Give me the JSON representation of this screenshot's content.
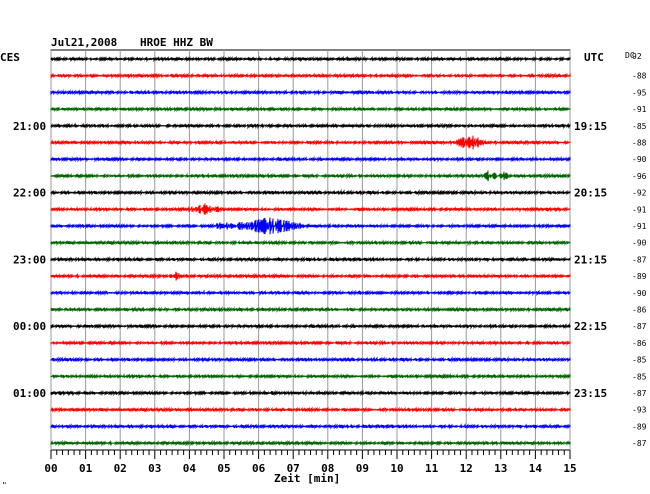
{
  "header": {
    "date": "Jul21,2008",
    "station": "HROE HHZ BW",
    "left_timezone": "CES",
    "right_timezone": "UTC",
    "dc_label": "DC",
    "footer_mark": "\""
  },
  "chart_data": {
    "type": "line",
    "title": "Jul21,2008   HROE HHZ BW",
    "xlabel": "Zeit [min]",
    "x_ticks": [
      "00",
      "01",
      "02",
      "03",
      "04",
      "05",
      "06",
      "07",
      "08",
      "09",
      "10",
      "11",
      "12",
      "13",
      "14",
      "15"
    ],
    "xlim": [
      0,
      15
    ],
    "grid": true,
    "trace_colors": [
      "#000000",
      "#ff0000",
      "#0000ff",
      "#006400"
    ],
    "trace_count": 24,
    "left_hour_labels": [
      {
        "trace": 4,
        "label": "21:00"
      },
      {
        "trace": 8,
        "label": "22:00"
      },
      {
        "trace": 12,
        "label": "23:00"
      },
      {
        "trace": 16,
        "label": "00:00"
      },
      {
        "trace": 20,
        "label": "01:00"
      }
    ],
    "right_hour_labels": [
      {
        "trace": 4,
        "label": "19:15"
      },
      {
        "trace": 8,
        "label": "20:15"
      },
      {
        "trace": 12,
        "label": "21:15"
      },
      {
        "trace": 16,
        "label": "22:15"
      },
      {
        "trace": 20,
        "label": "23:15"
      }
    ],
    "dc_values": [
      "92",
      "-88",
      "-95",
      "-91",
      "-85",
      "-88",
      "-90",
      "-96",
      "-92",
      "-91",
      "-91",
      "-90",
      "-87",
      "-89",
      "-90",
      "-86",
      "-87",
      "-86",
      "-85",
      "-85",
      "-87",
      "-93",
      "-89",
      "-87"
    ],
    "events": [
      {
        "trace": 5,
        "minute": 12.1,
        "amplitude": 8,
        "duration": 0.5
      },
      {
        "trace": 7,
        "minute": 12.65,
        "amplitude": 6,
        "duration": 0.3
      },
      {
        "trace": 7,
        "minute": 13.1,
        "amplitude": 5,
        "duration": 0.2
      },
      {
        "trace": 9,
        "minute": 4.4,
        "amplitude": 6,
        "duration": 0.7
      },
      {
        "trace": 10,
        "minute": 5.0,
        "amplitude": 4,
        "duration": 0.4
      },
      {
        "trace": 10,
        "minute": 6.3,
        "amplitude": 8,
        "duration": 1.3
      },
      {
        "trace": 13,
        "minute": 3.6,
        "amplitude": 4,
        "duration": 0.2
      }
    ]
  }
}
